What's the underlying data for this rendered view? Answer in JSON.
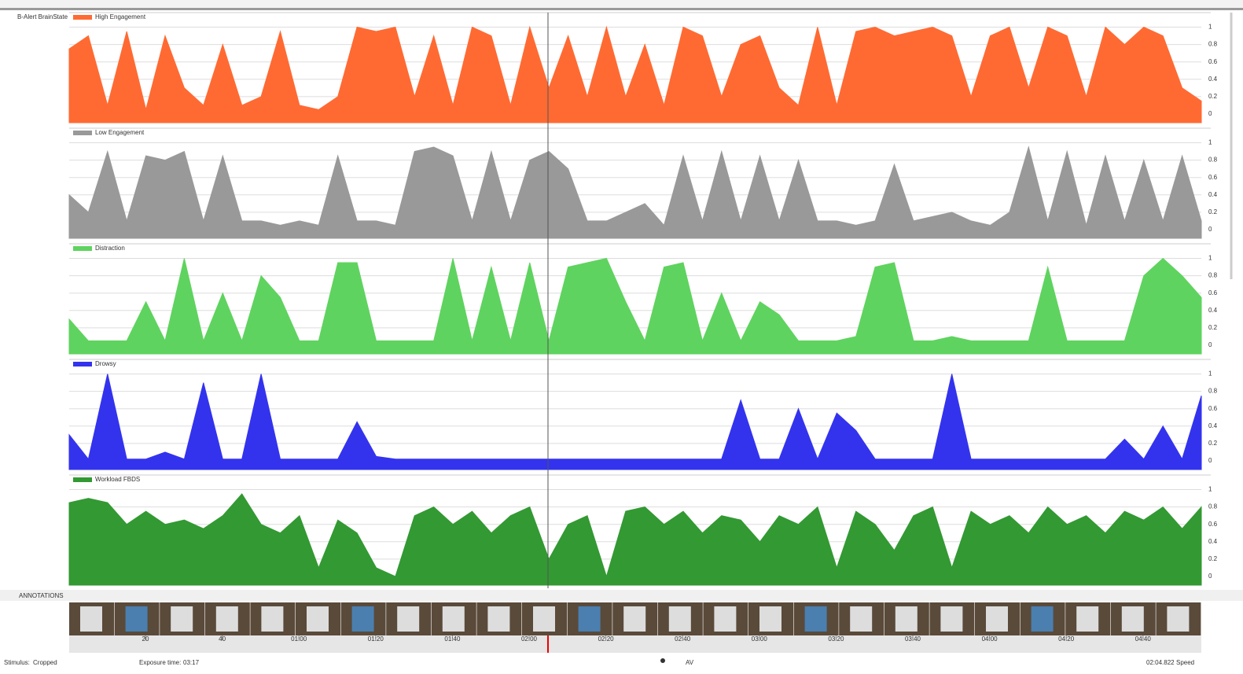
{
  "header": {
    "title": "B-Alert BrainState"
  },
  "chart_data": [
    {
      "type": "area",
      "name": "High Engagement",
      "color": "#ff6a33",
      "ylim": [
        -0.1,
        1.05
      ],
      "yticks": [
        0,
        0.2,
        0.4,
        0.6,
        0.8,
        1
      ],
      "grid": true,
      "categories": [
        null,
        null,
        null,
        null,
        null,
        null,
        null,
        null,
        null,
        null,
        null,
        null,
        null,
        null,
        null,
        null,
        null,
        null,
        null,
        null,
        null,
        null,
        null,
        null,
        null,
        null,
        null,
        null,
        null,
        null,
        null,
        null,
        null,
        null,
        null,
        null,
        null,
        null,
        null,
        null,
        null,
        null,
        null,
        null,
        null,
        null,
        null,
        null,
        null,
        null,
        null,
        null,
        null,
        null,
        null,
        null,
        null,
        null,
        null,
        null
      ],
      "values": [
        0.75,
        0.9,
        0.1,
        0.95,
        0.05,
        0.9,
        0.3,
        0.1,
        0.8,
        0.1,
        0.2,
        0.95,
        0.1,
        0.05,
        0.2,
        1,
        0.95,
        1,
        0.2,
        0.9,
        0.1,
        1,
        0.9,
        0.1,
        1,
        0.3,
        0.9,
        0.2,
        1,
        0.2,
        0.8,
        0.1,
        1,
        0.9,
        0.2,
        0.8,
        0.9,
        0.3,
        0.1,
        1,
        0.1,
        0.95,
        1,
        0.9,
        0.95,
        1,
        0.9,
        0.2,
        0.9,
        1,
        0.3,
        1,
        0.9,
        0.2,
        1,
        0.8,
        1,
        0.9,
        0.3,
        0.15
      ]
    },
    {
      "type": "area",
      "name": "Low Engagement",
      "color": "#999999",
      "ylim": [
        -0.1,
        1.05
      ],
      "yticks": [
        0,
        0.2,
        0.4,
        0.6,
        0.8,
        1
      ],
      "grid": true,
      "categories": [
        null,
        null,
        null,
        null,
        null,
        null,
        null,
        null,
        null,
        null,
        null,
        null,
        null,
        null,
        null,
        null,
        null,
        null,
        null,
        null,
        null,
        null,
        null,
        null,
        null,
        null,
        null,
        null,
        null,
        null,
        null,
        null,
        null,
        null,
        null,
        null,
        null,
        null,
        null,
        null,
        null,
        null,
        null,
        null,
        null,
        null,
        null,
        null,
        null,
        null,
        null,
        null,
        null,
        null,
        null,
        null,
        null,
        null,
        null,
        null
      ],
      "values": [
        0.4,
        0.2,
        0.9,
        0.1,
        0.85,
        0.8,
        0.9,
        0.1,
        0.85,
        0.1,
        0.1,
        0.05,
        0.1,
        0.05,
        0.85,
        0.1,
        0.1,
        0.05,
        0.9,
        0.95,
        0.85,
        0.1,
        0.9,
        0.1,
        0.8,
        0.9,
        0.7,
        0.1,
        0.1,
        0.2,
        0.3,
        0.05,
        0.85,
        0.1,
        0.9,
        0.1,
        0.85,
        0.1,
        0.8,
        0.1,
        0.1,
        0.05,
        0.1,
        0.75,
        0.1,
        0.15,
        0.2,
        0.1,
        0.05,
        0.2,
        0.95,
        0.1,
        0.9,
        0.05,
        0.85,
        0.1,
        0.8,
        0.1,
        0.85,
        0.1
      ]
    },
    {
      "type": "area",
      "name": "Distraction",
      "color": "#5fd35f",
      "ylim": [
        -0.1,
        1.05
      ],
      "yticks": [
        0,
        0.2,
        0.4,
        0.6,
        0.8,
        1
      ],
      "grid": true,
      "categories": [
        null,
        null,
        null,
        null,
        null,
        null,
        null,
        null,
        null,
        null,
        null,
        null,
        null,
        null,
        null,
        null,
        null,
        null,
        null,
        null,
        null,
        null,
        null,
        null,
        null,
        null,
        null,
        null,
        null,
        null,
        null,
        null,
        null,
        null,
        null,
        null,
        null,
        null,
        null,
        null,
        null,
        null,
        null,
        null,
        null,
        null,
        null,
        null,
        null,
        null,
        null,
        null,
        null,
        null,
        null,
        null,
        null,
        null,
        null,
        null
      ],
      "values": [
        0.3,
        0.05,
        0.05,
        0.05,
        0.5,
        0.05,
        1,
        0.05,
        0.6,
        0.05,
        0.8,
        0.55,
        0.05,
        0.05,
        0.95,
        0.95,
        0.05,
        0.05,
        0.05,
        0.05,
        1,
        0.05,
        0.9,
        0.05,
        0.95,
        0.05,
        0.9,
        0.95,
        1,
        0.5,
        0.05,
        0.9,
        0.95,
        0.05,
        0.6,
        0.05,
        0.5,
        0.35,
        0.05,
        0.05,
        0.05,
        0.1,
        0.9,
        0.95,
        0.05,
        0.05,
        0.1,
        0.05,
        0.05,
        0.05,
        0.05,
        0.9,
        0.05,
        0.05,
        0.05,
        0.05,
        0.8,
        1,
        0.8,
        0.55
      ]
    },
    {
      "type": "area",
      "name": "Drowsy",
      "color": "#3333ee",
      "ylim": [
        -0.1,
        1.05
      ],
      "yticks": [
        0,
        0.2,
        0.4,
        0.6,
        0.8,
        1
      ],
      "grid": true,
      "categories": [
        null,
        null,
        null,
        null,
        null,
        null,
        null,
        null,
        null,
        null,
        null,
        null,
        null,
        null,
        null,
        null,
        null,
        null,
        null,
        null,
        null,
        null,
        null,
        null,
        null,
        null,
        null,
        null,
        null,
        null,
        null,
        null,
        null,
        null,
        null,
        null,
        null,
        null,
        null,
        null,
        null,
        null,
        null,
        null,
        null,
        null,
        null,
        null,
        null,
        null,
        null,
        null,
        null,
        null,
        null,
        null,
        null,
        null,
        null,
        null
      ],
      "values": [
        0.3,
        0.02,
        1,
        0.02,
        0.02,
        0.1,
        0.02,
        0.9,
        0.02,
        0.02,
        1,
        0.02,
        0.02,
        0.02,
        0.02,
        0.45,
        0.05,
        0.02,
        0.02,
        0.02,
        0.02,
        0.02,
        0.02,
        0.02,
        0.02,
        0.02,
        0.02,
        0.02,
        0.02,
        0.02,
        0.02,
        0.02,
        0.02,
        0.02,
        0.02,
        0.7,
        0.02,
        0.02,
        0.6,
        0.02,
        0.55,
        0.35,
        0.02,
        0.02,
        0.02,
        0.02,
        1,
        0.02,
        0.02,
        0.02,
        0.02,
        0.02,
        0.02,
        0.02,
        0.02,
        0.25,
        0.02,
        0.4,
        0.02,
        0.75
      ]
    },
    {
      "type": "area",
      "name": "Workload FBDS",
      "color": "#339933",
      "ylim": [
        -0.1,
        1.05
      ],
      "yticks": [
        0,
        0.2,
        0.4,
        0.6,
        0.8,
        1
      ],
      "grid": true,
      "categories": [
        null,
        null,
        null,
        null,
        null,
        null,
        null,
        null,
        null,
        null,
        null,
        null,
        null,
        null,
        null,
        null,
        null,
        null,
        null,
        null,
        null,
        null,
        null,
        null,
        null,
        null,
        null,
        null,
        null,
        null,
        null,
        null,
        null,
        null,
        null,
        null,
        null,
        null,
        null,
        null,
        null,
        null,
        null,
        null,
        null,
        null,
        null,
        null,
        null,
        null,
        null,
        null,
        null,
        null,
        null,
        null,
        null,
        null,
        null,
        null
      ],
      "values": [
        0.85,
        0.9,
        0.85,
        0.6,
        0.75,
        0.6,
        0.65,
        0.55,
        0.7,
        0.95,
        0.6,
        0.5,
        0.7,
        0.1,
        0.65,
        0.5,
        0.1,
        0.0,
        0.7,
        0.8,
        0.6,
        0.75,
        0.5,
        0.7,
        0.8,
        0.2,
        0.6,
        0.7,
        0.0,
        0.75,
        0.8,
        0.6,
        0.75,
        0.5,
        0.7,
        0.65,
        0.4,
        0.7,
        0.6,
        0.8,
        0.1,
        0.75,
        0.6,
        0.3,
        0.7,
        0.8,
        0.1,
        0.75,
        0.6,
        0.7,
        0.5,
        0.8,
        0.6,
        0.7,
        0.5,
        0.75,
        0.65,
        0.8,
        0.55,
        0.8
      ]
    }
  ],
  "annotations": "ANNOTATIONS",
  "timeline": {
    "labels": [
      "20",
      "40",
      "01:00",
      "01:20",
      "01:40",
      "02:00",
      "02:20",
      "02:40",
      "03:00",
      "03:20",
      "03:40",
      "04:00",
      "04:20",
      "04:40"
    ]
  },
  "status": {
    "stimulus_label": "Stimulus:",
    "stimulus": "Cropped",
    "exposure_label": "Exposure time:",
    "exposure": "03:17",
    "av": "AV",
    "time": "02:04.822",
    "speed": "Speed"
  }
}
